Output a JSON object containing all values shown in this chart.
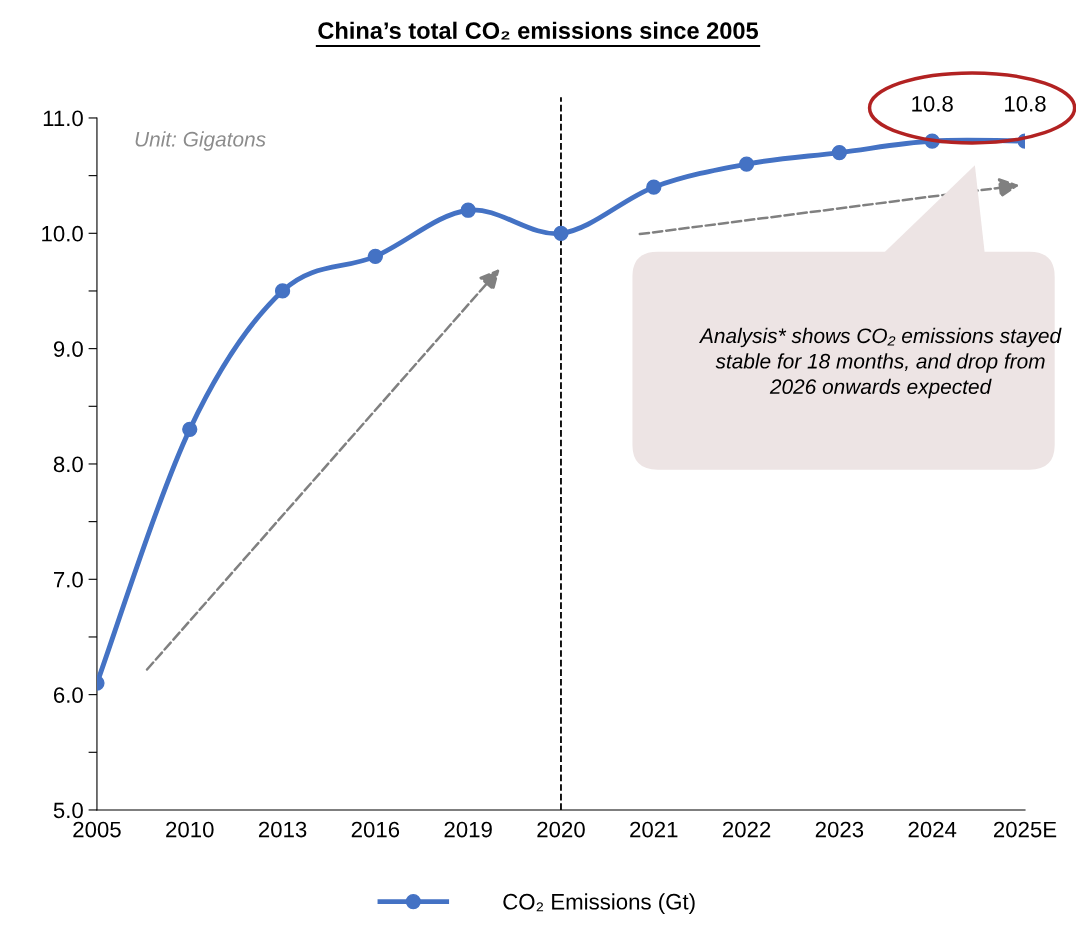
{
  "chart_data": {
    "type": "line",
    "title": "China’s total CO₂ emissions since 2005",
    "categories": [
      "2005",
      "2010",
      "2013",
      "2016",
      "2019",
      "2020",
      "2021",
      "2022",
      "2023",
      "2024",
      "2025E"
    ],
    "series": [
      {
        "name": "CO₂ Emissions (Gt)",
        "color": "#4472c4",
        "values": [
          6.1,
          8.3,
          9.5,
          9.8,
          10.2,
          10.0,
          10.4,
          10.6,
          10.7,
          10.8,
          10.8
        ],
        "value_labels": [
          null,
          null,
          null,
          null,
          null,
          null,
          null,
          null,
          null,
          "10.8",
          "10.8"
        ]
      }
    ],
    "ylim": [
      5,
      11
    ],
    "yticks": [
      {
        "value": 5,
        "label": "5.0"
      },
      {
        "value": 5.5,
        "label": null
      },
      {
        "value": 6,
        "label": "6.0"
      },
      {
        "value": 6.5,
        "label": null
      },
      {
        "value": 7,
        "label": "7.0"
      },
      {
        "value": 7.5,
        "label": null
      },
      {
        "value": 8,
        "label": "8.0"
      },
      {
        "value": 8.5,
        "label": null
      },
      {
        "value": 9,
        "label": "9.0"
      },
      {
        "value": 9.5,
        "label": null
      },
      {
        "value": 10,
        "label": "10.0"
      },
      {
        "value": 10.5,
        "label": null
      },
      {
        "value": 11,
        "label": "11.0"
      }
    ],
    "ref_lines": [
      {
        "axis": "x",
        "value": "2020",
        "color": "#000000",
        "line_style": "dashed"
      }
    ],
    "annotations": [
      "Unit: Gigatons",
      "Analysis* shows CO₂ emissions stayed stable for 18 months, and drop from 2026 onwards expected"
    ],
    "marker": "circle",
    "line_style": "solid",
    "legend": "bottom",
    "grid": false
  }
}
